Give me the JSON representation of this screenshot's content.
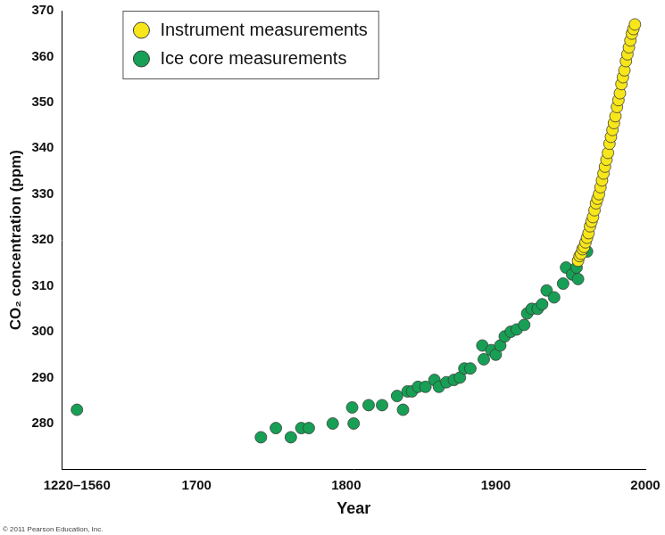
{
  "chart_data": {
    "type": "scatter",
    "x_label": "Year",
    "y_label": "CO₂ concentration (ppm)",
    "credit": "© 2011 Pearson Education, Inc.",
    "legend": "upper left",
    "grid": false,
    "xlim": [
      1610,
      2000
    ],
    "xticks": [
      {
        "value": 1620,
        "label": "1220–1560"
      },
      1700,
      1800,
      1900,
      2000
    ],
    "ylim": [
      270,
      370
    ],
    "yticks": [
      280,
      290,
      300,
      310,
      320,
      330,
      340,
      350,
      360,
      370
    ],
    "series": [
      {
        "name": "Instrument measurements",
        "color": "#f7e619",
        "marker": "circle",
        "x": [
          1955,
          1956,
          1957,
          1958,
          1959,
          1960,
          1961,
          1962,
          1963,
          1964,
          1965,
          1966,
          1967,
          1968,
          1969,
          1970,
          1971,
          1972,
          1973,
          1974,
          1975,
          1976,
          1977,
          1978,
          1979,
          1980,
          1981,
          1982,
          1983,
          1984,
          1985,
          1986,
          1987,
          1988,
          1989,
          1990,
          1991,
          1992,
          1993
        ],
        "values": [
          315.5,
          316.5,
          317,
          318,
          318.5,
          319.5,
          320.5,
          321.5,
          323,
          324,
          325,
          326.5,
          328,
          329,
          330,
          331.5,
          333,
          334.5,
          336,
          337.5,
          339,
          341,
          342.5,
          344,
          345.5,
          347,
          349,
          350.5,
          352,
          354,
          355.5,
          357,
          359,
          360.5,
          362,
          363.5,
          365,
          366,
          367
        ]
      },
      {
        "name": "Ice core measurements",
        "color": "#17a055",
        "marker": "circle",
        "x": [
          1620,
          1743,
          1753,
          1763,
          1770,
          1775,
          1791,
          1804,
          1805,
          1815,
          1824,
          1834,
          1838,
          1841,
          1844,
          1848,
          1853,
          1859,
          1862,
          1867,
          1872,
          1876,
          1879,
          1883,
          1891,
          1892,
          1897,
          1900,
          1903,
          1906,
          1910,
          1914,
          1919,
          1921,
          1924,
          1928,
          1931,
          1934,
          1939,
          1945,
          1947,
          1951,
          1954,
          1955,
          1961
        ],
        "values": [
          283,
          277,
          279,
          277,
          279,
          279,
          280,
          283.5,
          280,
          284,
          284,
          286,
          283,
          287,
          287,
          288,
          288,
          289.5,
          288,
          289,
          289.5,
          290,
          292,
          292,
          297,
          294,
          296,
          295,
          297,
          299,
          300,
          300.5,
          301.5,
          304,
          305,
          305,
          306,
          309,
          307.5,
          310.5,
          314,
          312.5,
          314,
          311.5,
          317.5
        ]
      }
    ]
  }
}
